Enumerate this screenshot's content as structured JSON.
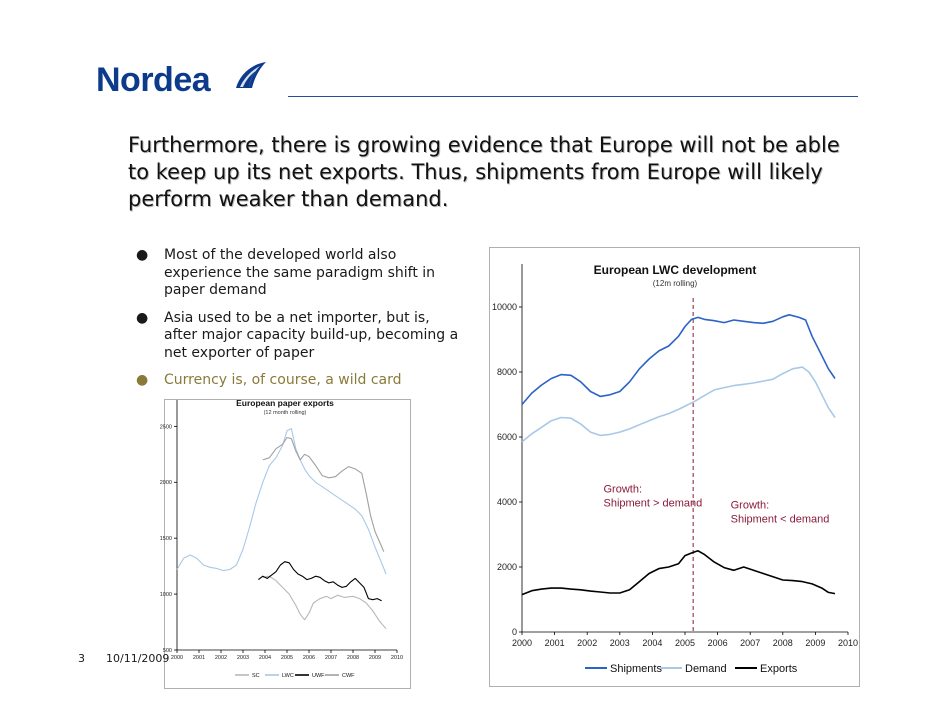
{
  "brand": {
    "name": "Nordea"
  },
  "slide": {
    "title": "Furthermore, there is growing evidence that Europe will not be able to keep up its net exports. Thus, shipments from Europe will likely perform weaker than demand.",
    "bullets": [
      "Most of the developed world also experience the same paradigm shift in paper demand",
      "Asia used to be a net importer, but is, after major capacity build-up, becoming a net exporter of paper",
      "Currency is, of course, a wild card"
    ],
    "bullet_glyph": "●",
    "number": "3",
    "date": "10/11/2009"
  },
  "colors": {
    "brand_blue": "#0c3b8c",
    "dark_blue": "#2b63c6",
    "light_blue": "#a9c8e8",
    "black": "#000000",
    "grey": "#a0a0a0",
    "annot": "#8b1a3a"
  },
  "chart_data": [
    {
      "type": "line",
      "title": "European paper exports",
      "subtitle": "(12 month rolling)",
      "x": [
        2000,
        2001,
        2002,
        2003,
        2004,
        2005,
        2006,
        2007,
        2008,
        2009,
        2010
      ],
      "xticks": [
        "2000",
        "2001",
        "2002",
        "2003",
        "2004",
        "2005",
        "2006",
        "2007",
        "2008",
        "2009",
        "2010"
      ],
      "ylim": [
        500,
        2700
      ],
      "yticks": [
        "500",
        "1000",
        "1500",
        "2000",
        "2500"
      ],
      "legend": [
        "SC",
        "LWC",
        "UWF",
        "CWF"
      ],
      "series": [
        {
          "name": "SC",
          "color": "#b8b8b8",
          "points": [
            [
              2003.9,
              1150
            ],
            [
              2004.2,
              1160
            ],
            [
              2004.5,
              1120
            ],
            [
              2004.8,
              1060
            ],
            [
              2005.1,
              1000
            ],
            [
              2005.4,
              900
            ],
            [
              2005.6,
              820
            ],
            [
              2005.8,
              770
            ],
            [
              2006.0,
              830
            ],
            [
              2006.2,
              920
            ],
            [
              2006.5,
              960
            ],
            [
              2006.8,
              980
            ],
            [
              2007.0,
              960
            ],
            [
              2007.3,
              990
            ],
            [
              2007.6,
              970
            ],
            [
              2008.0,
              980
            ],
            [
              2008.3,
              960
            ],
            [
              2008.6,
              920
            ],
            [
              2008.9,
              850
            ],
            [
              2009.2,
              760
            ],
            [
              2009.5,
              690
            ]
          ]
        },
        {
          "name": "LWC",
          "color": "#a9c8e8",
          "points": [
            [
              2000.0,
              1220
            ],
            [
              2000.3,
              1320
            ],
            [
              2000.6,
              1350
            ],
            [
              2000.9,
              1320
            ],
            [
              2001.2,
              1260
            ],
            [
              2001.5,
              1240
            ],
            [
              2001.8,
              1230
            ],
            [
              2002.1,
              1210
            ],
            [
              2002.4,
              1220
            ],
            [
              2002.7,
              1260
            ],
            [
              2003.0,
              1400
            ],
            [
              2003.3,
              1600
            ],
            [
              2003.6,
              1820
            ],
            [
              2003.9,
              2000
            ],
            [
              2004.2,
              2150
            ],
            [
              2004.5,
              2220
            ],
            [
              2004.8,
              2330
            ],
            [
              2005.0,
              2460
            ],
            [
              2005.2,
              2480
            ],
            [
              2005.4,
              2300
            ],
            [
              2005.6,
              2200
            ],
            [
              2005.8,
              2120
            ],
            [
              2006.0,
              2060
            ],
            [
              2006.3,
              2000
            ],
            [
              2006.6,
              1960
            ],
            [
              2006.9,
              1920
            ],
            [
              2007.2,
              1880
            ],
            [
              2007.5,
              1840
            ],
            [
              2007.8,
              1800
            ],
            [
              2008.1,
              1760
            ],
            [
              2008.4,
              1700
            ],
            [
              2008.7,
              1580
            ],
            [
              2009.0,
              1420
            ],
            [
              2009.3,
              1280
            ],
            [
              2009.5,
              1180
            ]
          ]
        },
        {
          "name": "UWF",
          "color": "#000000",
          "points": [
            [
              2003.7,
              1130
            ],
            [
              2003.9,
              1160
            ],
            [
              2004.1,
              1140
            ],
            [
              2004.3,
              1170
            ],
            [
              2004.5,
              1200
            ],
            [
              2004.7,
              1260
            ],
            [
              2004.9,
              1290
            ],
            [
              2005.1,
              1280
            ],
            [
              2005.3,
              1220
            ],
            [
              2005.5,
              1180
            ],
            [
              2005.7,
              1160
            ],
            [
              2005.9,
              1130
            ],
            [
              2006.1,
              1140
            ],
            [
              2006.3,
              1160
            ],
            [
              2006.5,
              1150
            ],
            [
              2006.7,
              1120
            ],
            [
              2006.9,
              1100
            ],
            [
              2007.1,
              1110
            ],
            [
              2007.3,
              1080
            ],
            [
              2007.5,
              1060
            ],
            [
              2007.7,
              1070
            ],
            [
              2007.9,
              1110
            ],
            [
              2008.1,
              1140
            ],
            [
              2008.3,
              1100
            ],
            [
              2008.5,
              1060
            ],
            [
              2008.7,
              960
            ],
            [
              2008.9,
              950
            ],
            [
              2009.1,
              960
            ],
            [
              2009.3,
              940
            ]
          ]
        },
        {
          "name": "CWF",
          "color": "#a0a0a0",
          "points": [
            [
              2003.9,
              2200
            ],
            [
              2004.2,
              2220
            ],
            [
              2004.5,
              2300
            ],
            [
              2004.8,
              2340
            ],
            [
              2005.0,
              2400
            ],
            [
              2005.2,
              2390
            ],
            [
              2005.4,
              2280
            ],
            [
              2005.6,
              2200
            ],
            [
              2005.8,
              2250
            ],
            [
              2006.0,
              2230
            ],
            [
              2006.3,
              2150
            ],
            [
              2006.6,
              2060
            ],
            [
              2006.9,
              2040
            ],
            [
              2007.2,
              2050
            ],
            [
              2007.5,
              2100
            ],
            [
              2007.8,
              2140
            ],
            [
              2008.1,
              2120
            ],
            [
              2008.4,
              2080
            ],
            [
              2008.6,
              1900
            ],
            [
              2008.8,
              1700
            ],
            [
              2009.0,
              1560
            ],
            [
              2009.2,
              1470
            ],
            [
              2009.4,
              1380
            ]
          ]
        }
      ]
    },
    {
      "type": "line",
      "title": "European LWC development",
      "subtitle": "(12m rolling)",
      "x": [
        2000,
        2001,
        2002,
        2003,
        2004,
        2005,
        2006,
        2007,
        2008,
        2009,
        2010
      ],
      "xticks": [
        "2000",
        "2001",
        "2002",
        "2003",
        "2004",
        "2005",
        "2006",
        "2007",
        "2008",
        "2009",
        "2010"
      ],
      "ylim": [
        0,
        11200
      ],
      "yticks": [
        "0",
        "2000",
        "4000",
        "6000",
        "8000",
        "10000"
      ],
      "legend": [
        "Shipments",
        "Demand",
        "Exports"
      ],
      "vline": 2005.25,
      "annotations": [
        {
          "lines": [
            "Growth:",
            "Shipment > demand"
          ],
          "x": 2002.5,
          "y": 4300
        },
        {
          "lines": [
            "Growth:",
            "Shipment < demand"
          ],
          "x": 2006.4,
          "y": 3800
        }
      ],
      "series": [
        {
          "name": "Shipments",
          "color": "#2b63c6",
          "points": [
            [
              2000.0,
              7000
            ],
            [
              2000.3,
              7350
            ],
            [
              2000.6,
              7600
            ],
            [
              2000.9,
              7800
            ],
            [
              2001.2,
              7920
            ],
            [
              2001.5,
              7900
            ],
            [
              2001.8,
              7700
            ],
            [
              2002.1,
              7400
            ],
            [
              2002.4,
              7250
            ],
            [
              2002.7,
              7300
            ],
            [
              2003.0,
              7400
            ],
            [
              2003.3,
              7700
            ],
            [
              2003.6,
              8100
            ],
            [
              2003.9,
              8400
            ],
            [
              2004.2,
              8650
            ],
            [
              2004.5,
              8800
            ],
            [
              2004.8,
              9100
            ],
            [
              2005.0,
              9400
            ],
            [
              2005.2,
              9620
            ],
            [
              2005.4,
              9680
            ],
            [
              2005.6,
              9620
            ],
            [
              2005.9,
              9580
            ],
            [
              2006.2,
              9520
            ],
            [
              2006.5,
              9600
            ],
            [
              2006.8,
              9560
            ],
            [
              2007.1,
              9520
            ],
            [
              2007.4,
              9500
            ],
            [
              2007.7,
              9560
            ],
            [
              2008.0,
              9700
            ],
            [
              2008.2,
              9760
            ],
            [
              2008.5,
              9680
            ],
            [
              2008.7,
              9600
            ],
            [
              2008.9,
              9100
            ],
            [
              2009.2,
              8500
            ],
            [
              2009.4,
              8100
            ],
            [
              2009.6,
              7800
            ]
          ]
        },
        {
          "name": "Demand",
          "color": "#a9c8e8",
          "points": [
            [
              2000.0,
              5850
            ],
            [
              2000.3,
              6100
            ],
            [
              2000.6,
              6300
            ],
            [
              2000.9,
              6500
            ],
            [
              2001.2,
              6600
            ],
            [
              2001.5,
              6580
            ],
            [
              2001.8,
              6400
            ],
            [
              2002.1,
              6150
            ],
            [
              2002.4,
              6050
            ],
            [
              2002.7,
              6080
            ],
            [
              2003.0,
              6150
            ],
            [
              2003.3,
              6250
            ],
            [
              2003.6,
              6380
            ],
            [
              2003.9,
              6500
            ],
            [
              2004.2,
              6620
            ],
            [
              2004.5,
              6720
            ],
            [
              2004.8,
              6850
            ],
            [
              2005.0,
              6950
            ],
            [
              2005.3,
              7100
            ],
            [
              2005.6,
              7280
            ],
            [
              2005.9,
              7450
            ],
            [
              2006.2,
              7520
            ],
            [
              2006.5,
              7580
            ],
            [
              2006.8,
              7620
            ],
            [
              2007.1,
              7660
            ],
            [
              2007.4,
              7720
            ],
            [
              2007.7,
              7780
            ],
            [
              2008.0,
              7950
            ],
            [
              2008.3,
              8100
            ],
            [
              2008.6,
              8150
            ],
            [
              2008.8,
              8000
            ],
            [
              2009.0,
              7700
            ],
            [
              2009.2,
              7300
            ],
            [
              2009.4,
              6900
            ],
            [
              2009.6,
              6600
            ]
          ]
        },
        {
          "name": "Exports",
          "color": "#000000",
          "points": [
            [
              2000.0,
              1150
            ],
            [
              2000.3,
              1270
            ],
            [
              2000.6,
              1320
            ],
            [
              2000.9,
              1350
            ],
            [
              2001.2,
              1350
            ],
            [
              2001.5,
              1320
            ],
            [
              2001.8,
              1300
            ],
            [
              2002.1,
              1260
            ],
            [
              2002.4,
              1230
            ],
            [
              2002.7,
              1200
            ],
            [
              2003.0,
              1200
            ],
            [
              2003.3,
              1300
            ],
            [
              2003.6,
              1550
            ],
            [
              2003.9,
              1800
            ],
            [
              2004.2,
              1950
            ],
            [
              2004.5,
              2000
            ],
            [
              2004.8,
              2100
            ],
            [
              2005.0,
              2350
            ],
            [
              2005.2,
              2430
            ],
            [
              2005.4,
              2500
            ],
            [
              2005.6,
              2380
            ],
            [
              2005.9,
              2150
            ],
            [
              2006.2,
              1980
            ],
            [
              2006.5,
              1900
            ],
            [
              2006.8,
              2000
            ],
            [
              2007.1,
              1900
            ],
            [
              2007.4,
              1800
            ],
            [
              2007.7,
              1700
            ],
            [
              2008.0,
              1600
            ],
            [
              2008.3,
              1580
            ],
            [
              2008.6,
              1550
            ],
            [
              2008.9,
              1480
            ],
            [
              2009.2,
              1350
            ],
            [
              2009.4,
              1220
            ],
            [
              2009.6,
              1180
            ]
          ]
        }
      ]
    }
  ]
}
